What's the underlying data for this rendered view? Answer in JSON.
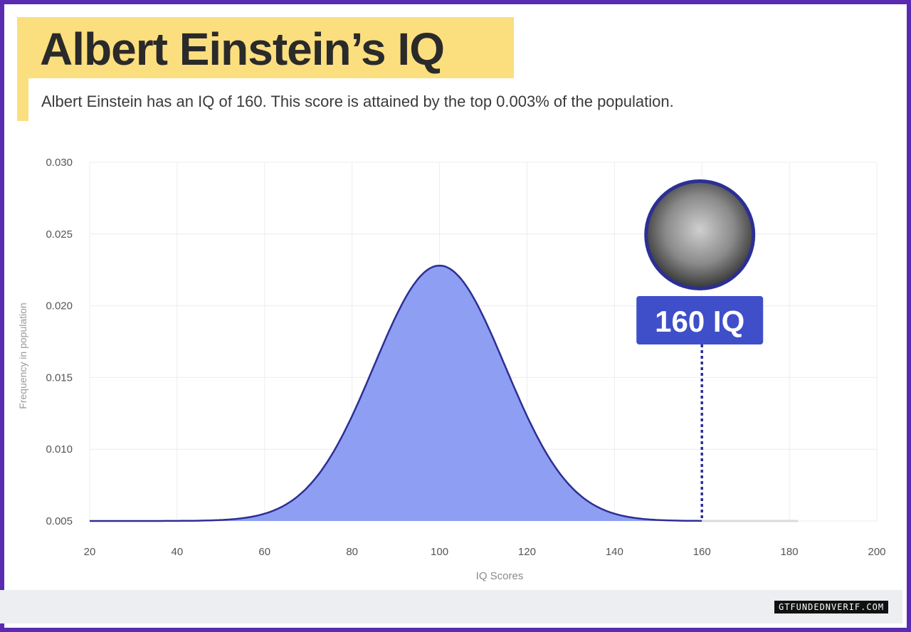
{
  "header": {
    "title": "Albert Einstein’s IQ",
    "subtitle": "Albert Einstein has an IQ of 160. This score is attained by the top 0.003% of the population."
  },
  "chart_data": {
    "type": "area",
    "xlabel": "IQ Scores",
    "ylabel": "Frequency in population",
    "xlim": [
      20,
      200
    ],
    "ylim": [
      0.005,
      0.03
    ],
    "xticks": [
      "20",
      "40",
      "60",
      "80",
      "100",
      "120",
      "140",
      "160",
      "180",
      "200"
    ],
    "yticks": [
      "0.005",
      "0.010",
      "0.015",
      "0.020",
      "0.025",
      "0.030"
    ],
    "grid": true,
    "distribution": {
      "mean": 100,
      "sd": 15,
      "baseline": 0.005,
      "x_end": 182
    },
    "series": [
      {
        "x": [
          20,
          40,
          50,
          55,
          60,
          65,
          70,
          75,
          80,
          85,
          90,
          95,
          100,
          105,
          110,
          115,
          120,
          125,
          130,
          135,
          140,
          145,
          150,
          160,
          182
        ],
        "y": [
          0.005,
          0.005,
          0.005,
          0.0052,
          0.0058,
          0.0068,
          0.0086,
          0.0111,
          0.0142,
          0.0173,
          0.0203,
          0.0222,
          0.0228,
          0.0222,
          0.0203,
          0.0173,
          0.0142,
          0.0111,
          0.0086,
          0.0068,
          0.0058,
          0.0052,
          0.0051,
          0.005,
          0.005
        ]
      }
    ],
    "annotation": {
      "x": 160,
      "label": "160 IQ"
    },
    "colors": {
      "fill": "#8e9ef2",
      "line": "#2c2f93",
      "marker": "#3f4fc9",
      "grid": "#ececf2"
    }
  },
  "footer": {
    "watermark": "GTFUNDEDNVERIF.COM"
  }
}
